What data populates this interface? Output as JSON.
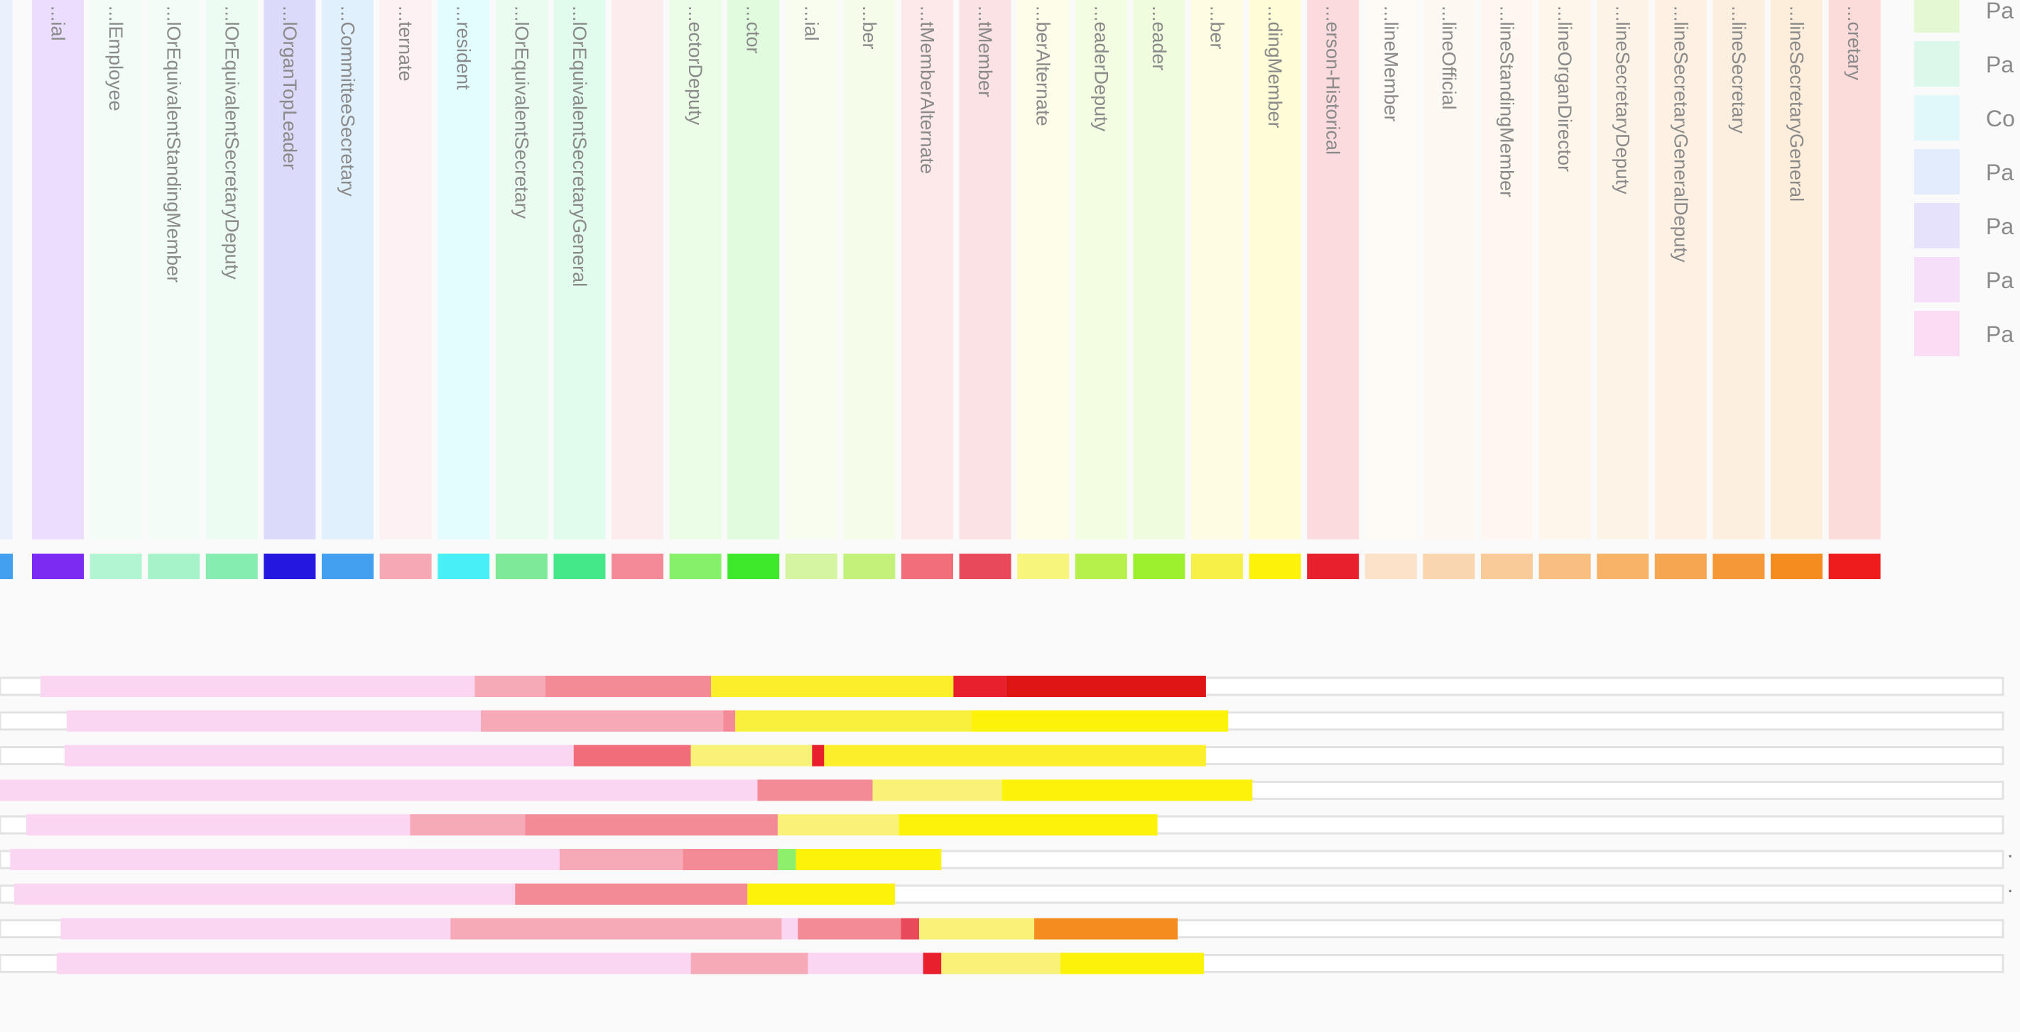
{
  "chart_data": {
    "type": "timeline",
    "columns": [
      {
        "label": "...ial",
        "color": "#7b2cf0"
      },
      {
        "label": "...lEmployee",
        "color": "#b2f5d3"
      },
      {
        "label": "...lOrEquivalentStandingMember",
        "color": "#a6f2c9"
      },
      {
        "label": "...lOrEquivalentSecretaryDeputy",
        "color": "#86edb0"
      },
      {
        "label": "...lOrganTopLeader",
        "color": "#2418e0"
      },
      {
        "label": "...CommitteeSecretary",
        "color": "#43a0f0"
      },
      {
        "label": "...ternate",
        "color": "#f6a8b5"
      },
      {
        "label": "...resident",
        "color": "#48f0f6"
      },
      {
        "label": "...lOrEquivalentSecretary",
        "color": "#7eea98"
      },
      {
        "label": "...lOrEquivalentSecretaryGeneral",
        "color": "#45e888"
      },
      {
        "label": "",
        "color": "#f48a97"
      },
      {
        "label": "...ectorDeputy",
        "color": "#86f06a"
      },
      {
        "label": "...ctor",
        "color": "#3ee82a"
      },
      {
        "label": "...ial",
        "color": "#d5f5a3"
      },
      {
        "label": "...ber",
        "color": "#c2f27a"
      },
      {
        "label": "...tMemberAlternate",
        "color": "#f26e7a"
      },
      {
        "label": "...tMember",
        "color": "#e84a5c"
      },
      {
        "label": "...berAlternate",
        "color": "#f8f57c"
      },
      {
        "label": "...eaderDeputy",
        "color": "#b6f04a"
      },
      {
        "label": "...eader",
        "color": "#9cf02e"
      },
      {
        "label": "...ber",
        "color": "#f6f048"
      },
      {
        "label": "...dingMember",
        "color": "#fcf20a"
      },
      {
        "label": "...erson-Historical",
        "color": "#e8202e"
      },
      {
        "label": "...lineMember",
        "color": "#fbe2c8"
      },
      {
        "label": "...lineOfficial",
        "color": "#fad6b0"
      },
      {
        "label": "...lineStandingMember",
        "color": "#f9cb98"
      },
      {
        "label": "...lineOrganDirector",
        "color": "#f8bf80"
      },
      {
        "label": "...lineSecretaryDeputy",
        "color": "#f7b368"
      },
      {
        "label": "...lineSecretaryGeneralDeputy",
        "color": "#f6a550"
      },
      {
        "label": "...lineSecretary",
        "color": "#f59838"
      },
      {
        "label": "...lineSecretaryGeneral",
        "color": "#f48c1f"
      },
      {
        "label": "...cretary",
        "color": "#ee1c1c"
      }
    ],
    "legend": [
      {
        "label": "Pa",
        "color": "#e4f8d4"
      },
      {
        "label": "Pa",
        "color": "#dcf8ea"
      },
      {
        "label": "Co",
        "color": "#e0f8fa"
      },
      {
        "label": "Pa",
        "color": "#e2ecfc"
      },
      {
        "label": "Pa",
        "color": "#e6e2fb"
      },
      {
        "label": "Pa",
        "color": "#f6dff8"
      },
      {
        "label": "Pa",
        "color": "#fbdcf5"
      }
    ],
    "timelines": [
      [
        [
          "#fbd6f3",
          0.02,
          0.235
        ],
        [
          "#f6a9b6",
          0.235,
          0.27
        ],
        [
          "#f28b96",
          0.27,
          0.352
        ],
        [
          "#fbee2a",
          0.352,
          0.472
        ],
        [
          "#e8202e",
          0.472,
          0.498
        ],
        [
          "#df1414",
          0.498,
          0.597
        ]
      ],
      [
        [
          "#fbd6f3",
          0.033,
          0.238
        ],
        [
          "#f6a9b6",
          0.238,
          0.358
        ],
        [
          "#f48a97",
          0.358,
          0.364
        ],
        [
          "#f9f03e",
          0.364,
          0.481
        ],
        [
          "#fcf20a",
          0.481,
          0.608
        ]
      ],
      [
        [
          "#fbd6f3",
          0.032,
          0.284
        ],
        [
          "#f06d79",
          0.284,
          0.342
        ],
        [
          "#f9f278",
          0.342,
          0.402
        ],
        [
          "#e8202e",
          0.402,
          0.408
        ],
        [
          "#fbee2a",
          0.408,
          0.597
        ]
      ],
      [
        [
          "#fbd6f3",
          0.0,
          0.375
        ],
        [
          "#f28b96",
          0.375,
          0.432
        ],
        [
          "#f9f278",
          0.432,
          0.496
        ],
        [
          "#fcf20a",
          0.496,
          0.62
        ]
      ],
      [
        [
          "#fbd6f3",
          0.013,
          0.203
        ],
        [
          "#f6a9b6",
          0.203,
          0.26
        ],
        [
          "#f28b96",
          0.26,
          0.385
        ],
        [
          "#f9f278",
          0.385,
          0.445
        ],
        [
          "#fcf20a",
          0.445,
          0.573
        ]
      ],
      [
        [
          "#fbd6f3",
          0.005,
          0.277
        ],
        [
          "#f6a9b6",
          0.277,
          0.338
        ],
        [
          "#f28b96",
          0.338,
          0.385
        ],
        [
          "#8ef06a",
          0.385,
          0.394
        ],
        [
          "#fcf20a",
          0.394,
          0.466
        ]
      ],
      [
        [
          "#fbd6f3",
          0.007,
          0.255
        ],
        [
          "#f28b96",
          0.255,
          0.37
        ],
        [
          "#fcf20a",
          0.37,
          0.443
        ]
      ],
      [
        [
          "#fbd6f3",
          0.03,
          0.223
        ],
        [
          "#f6a9b6",
          0.223,
          0.387
        ],
        [
          "#fbd6f3",
          0.387,
          0.395
        ],
        [
          "#f28b96",
          0.395,
          0.446
        ],
        [
          "#e84a5c",
          0.446,
          0.455
        ],
        [
          "#f9f278",
          0.455,
          0.512
        ],
        [
          "#f48c1f",
          0.512,
          0.583
        ]
      ],
      [
        [
          "#fbd6f3",
          0.028,
          0.342
        ],
        [
          "#f6a9b6",
          0.342,
          0.4
        ],
        [
          "#fbd6f3",
          0.4,
          0.457
        ],
        [
          "#e8202e",
          0.457,
          0.466
        ],
        [
          "#f9f278",
          0.466,
          0.525
        ],
        [
          "#fcf20a",
          0.525,
          0.596
        ]
      ]
    ],
    "dots": [
      {
        "row": 5,
        "label": "."
      },
      {
        "row": 6,
        "label": "."
      }
    ]
  }
}
